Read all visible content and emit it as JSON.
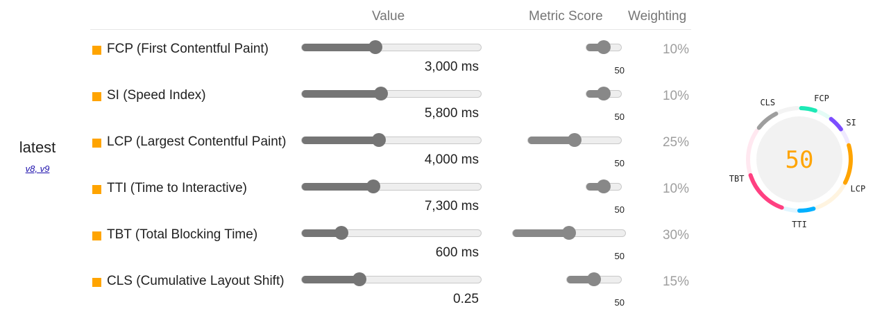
{
  "headers": {
    "value": "Value",
    "metric_score": "Metric Score",
    "weighting": "Weighting"
  },
  "version": {
    "name": "latest",
    "link": "v8, v9"
  },
  "metrics": [
    {
      "name": "FCP (First Contentful Paint)",
      "value": "3,000 ms",
      "value_pos": 0.41,
      "score": "50",
      "score_pos": 0.5,
      "weight": "10%"
    },
    {
      "name": "SI (Speed Index)",
      "value": "5,800 ms",
      "value_pos": 0.44,
      "score": "50",
      "score_pos": 0.5,
      "weight": "10%"
    },
    {
      "name": "LCP (Largest Contentful Paint)",
      "value": "4,000 ms",
      "value_pos": 0.43,
      "score": "50",
      "score_pos": 0.5,
      "weight": "25%"
    },
    {
      "name": "TTI (Time to Interactive)",
      "value": "7,300 ms",
      "value_pos": 0.4,
      "score": "50",
      "score_pos": 0.5,
      "weight": "10%"
    },
    {
      "name": "TBT (Total Blocking Time)",
      "value": "600 ms",
      "value_pos": 0.22,
      "score": "50",
      "score_pos": 0.5,
      "weight": "30%"
    },
    {
      "name": "CLS (Cumulative Layout Shift)",
      "value": "0.25",
      "value_pos": 0.32,
      "score": "50",
      "score_pos": 0.5,
      "weight": "15%"
    }
  ],
  "gauge": {
    "score": "50",
    "score_color": "#ffa400",
    "segments": [
      {
        "label": "FCP",
        "color": "#1de9b6",
        "weight": 10
      },
      {
        "label": "SI",
        "color": "#7c4dff",
        "weight": 10
      },
      {
        "label": "LCP",
        "color": "#ffa400",
        "weight": 25
      },
      {
        "label": "TTI",
        "color": "#00b0ff",
        "weight": 10
      },
      {
        "label": "TBT",
        "color": "#ff4081",
        "weight": 30
      },
      {
        "label": "CLS",
        "color": "#9e9e9e",
        "weight": 15
      }
    ],
    "fraction": 0.5
  }
}
